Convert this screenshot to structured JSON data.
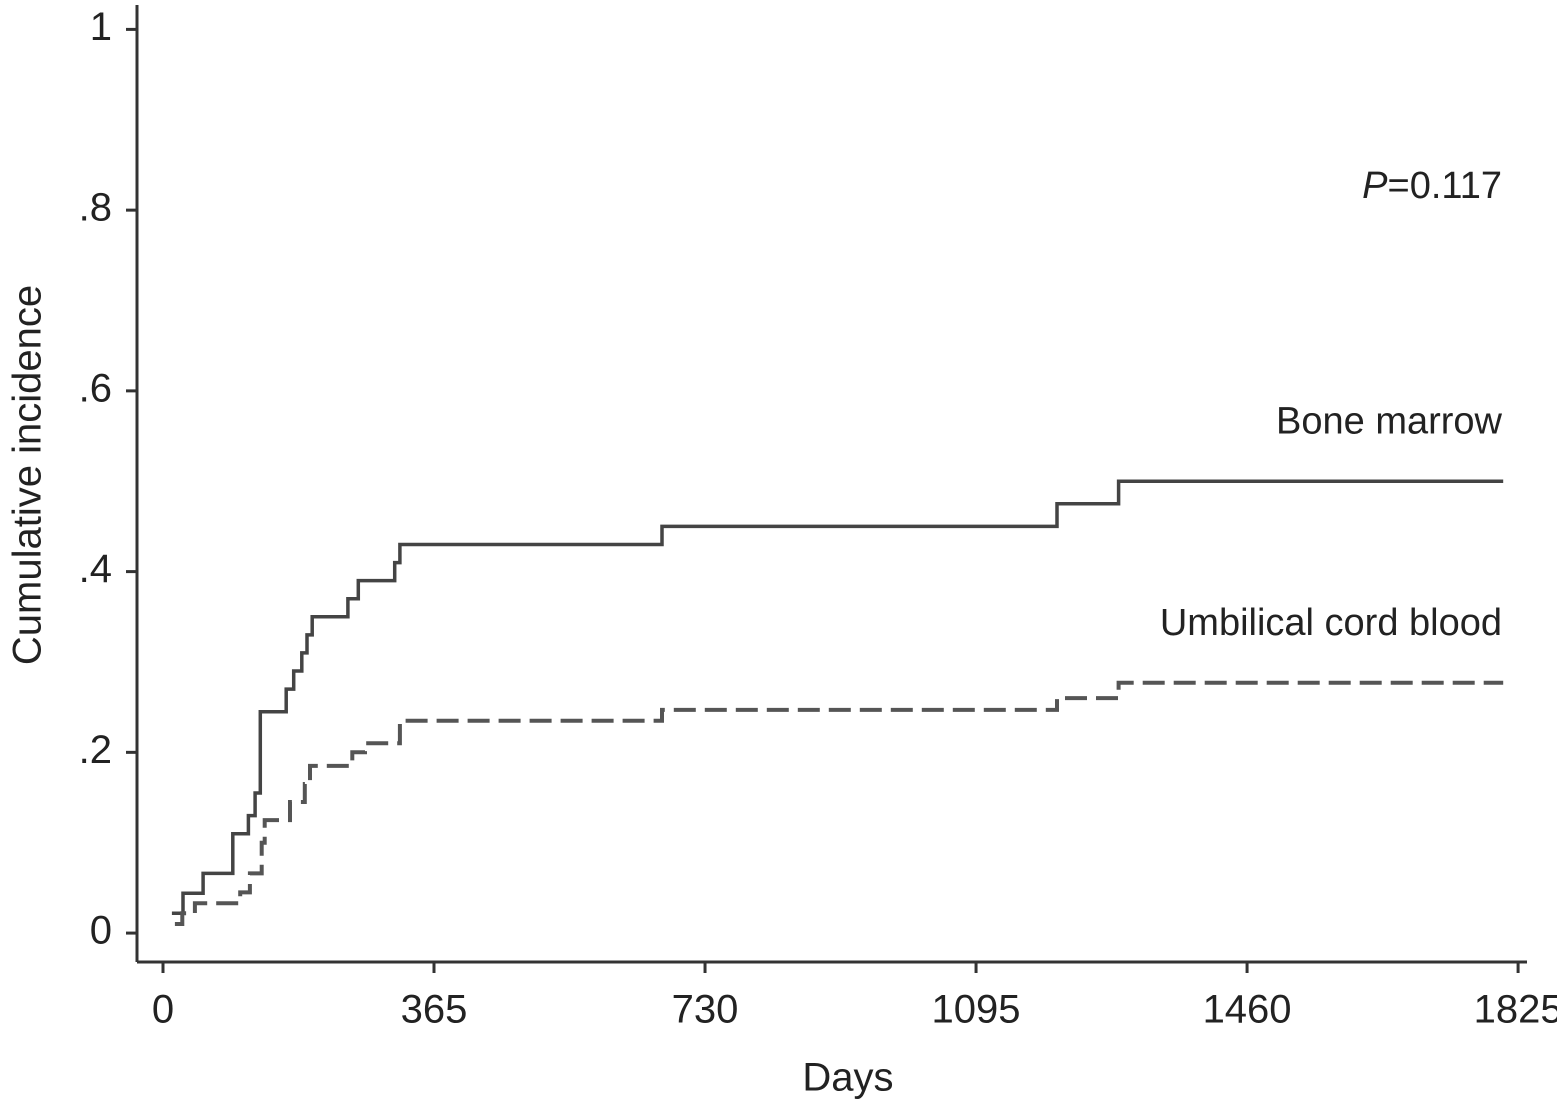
{
  "chart_data": {
    "type": "step",
    "ylabel": "Cumulative incidence",
    "xlabel": "Days",
    "annotation": [
      "P",
      "=0.117"
    ],
    "xlim": [
      -35,
      1837
    ],
    "xticks": [
      0,
      365,
      730,
      1095,
      1460,
      1825
    ],
    "ylim": [
      -0.032,
      1.027
    ],
    "yticks": [
      0,
      {
        "value": 0.2,
        "label": ".2"
      },
      {
        "value": 0.4,
        "label": ".4"
      },
      {
        "value": 0.6,
        "label": ".6"
      },
      {
        "value": 0.8,
        "label": ".8"
      },
      1
    ],
    "series": [
      {
        "name": "Bone marrow",
        "color": "#444444",
        "dashed": false,
        "x": [
          12,
          27,
          27,
          54,
          54,
          94,
          94,
          115,
          115,
          124,
          124,
          131,
          131,
          166,
          166,
          176,
          176,
          187,
          187,
          194,
          194,
          201,
          201,
          249,
          249,
          263,
          263,
          312,
          312,
          319,
          319,
          672,
          672,
          1204,
          1204,
          1287,
          1287,
          1805
        ],
        "values": [
          0.022,
          0.022,
          0.044,
          0.044,
          0.066,
          0.066,
          0.11,
          0.11,
          0.13,
          0.13,
          0.155,
          0.155,
          0.245,
          0.245,
          0.27,
          0.27,
          0.29,
          0.29,
          0.31,
          0.31,
          0.33,
          0.33,
          0.35,
          0.35,
          0.37,
          0.37,
          0.39,
          0.39,
          0.41,
          0.41,
          0.43,
          0.43,
          0.45,
          0.45,
          0.475,
          0.475,
          0.5,
          0.5
        ]
      },
      {
        "name": "Umbilical cord blood",
        "color": "#555555",
        "dashed": true,
        "x": [
          16,
          26,
          26,
          43,
          43,
          104,
          104,
          117,
          117,
          133,
          133,
          137,
          137,
          171,
          171,
          191,
          191,
          198,
          198,
          255,
          255,
          272,
          272,
          319,
          319,
          672,
          672,
          1204,
          1204,
          1287,
          1287,
          1805
        ],
        "values": [
          0.01,
          0.01,
          0.022,
          0.022,
          0.033,
          0.033,
          0.045,
          0.045,
          0.066,
          0.066,
          0.1,
          0.1,
          0.125,
          0.125,
          0.145,
          0.145,
          0.165,
          0.165,
          0.185,
          0.185,
          0.2,
          0.2,
          0.21,
          0.21,
          0.235,
          0.235,
          0.247,
          0.247,
          0.26,
          0.26,
          0.277,
          0.277
        ]
      }
    ]
  }
}
